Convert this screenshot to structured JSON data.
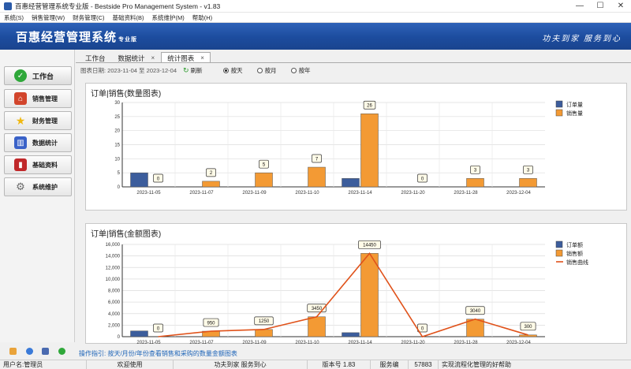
{
  "window": {
    "title": "百惠经营管理系统专业版 - Bestside Pro Management System - v1.83",
    "minimize": "—",
    "maximize": "☐",
    "close": "✕"
  },
  "menu": [
    "系统(S)",
    "销售管理(W)",
    "财务管理(C)",
    "基础资料(B)",
    "系统维护(M)",
    "帮助(H)"
  ],
  "banner": {
    "brand": "百惠经营管理系统",
    "edition": "专业版",
    "slogan": "功夫到家  服务到心"
  },
  "sidebar": {
    "items": [
      {
        "label": "工作台",
        "icon": "check-icon",
        "color": "#2fa83a"
      },
      {
        "label": "销售管理",
        "icon": "house-icon",
        "color": "#d2452c"
      },
      {
        "label": "财务管理",
        "icon": "star-icon",
        "color": "#f0c020"
      },
      {
        "label": "数据统计",
        "icon": "bar-chart-icon",
        "color": "#3a62c8"
      },
      {
        "label": "基础资料",
        "icon": "book-icon",
        "color": "#c0282a"
      },
      {
        "label": "系统维护",
        "icon": "gear-icon",
        "color": "#6a6a6a"
      }
    ]
  },
  "tabs": [
    {
      "label": "工作台"
    },
    {
      "label": "数据统计",
      "close": "×"
    },
    {
      "label": "统计图表",
      "close": "×"
    }
  ],
  "toolbar": {
    "date_range": "图表日期: 2023-11-04 至 2023-12-04",
    "refresh": "刷新",
    "radios": [
      "按天",
      "按月",
      "按年"
    ],
    "selected": "按天"
  },
  "chart_data": [
    {
      "type": "bar",
      "title": "订单|销售(数量图表)",
      "categories": [
        "2023-11-05",
        "2023-11-07",
        "2023-11-09",
        "2023-11-10",
        "2023-11-14",
        "2023-11-20",
        "2023-11-28",
        "2023-12-04"
      ],
      "series": [
        {
          "name": "订单量",
          "values": [
            5,
            0,
            0,
            0,
            3,
            0,
            0,
            0
          ],
          "color": "#3c5d9c"
        },
        {
          "name": "销售量",
          "values": [
            0,
            2,
            5,
            7,
            26,
            0,
            3,
            3
          ],
          "color": "#f39a34"
        }
      ],
      "data_labels": [
        "0",
        "2",
        "5",
        "7",
        "26",
        "0",
        "3",
        "3"
      ],
      "yticks": [
        "0",
        "5",
        "10",
        "15",
        "20",
        "25",
        "30"
      ],
      "ylim": [
        0,
        30
      ],
      "grid": true,
      "legend": "top-right"
    },
    {
      "type": "bar",
      "title": "订单|销售(金额图表)",
      "categories": [
        "2023-11-05",
        "2023-11-07",
        "2023-11-09",
        "2023-11-10",
        "2023-11-14",
        "2023-11-20",
        "2023-11-28",
        "2023-12-04"
      ],
      "series": [
        {
          "name": "订单额",
          "values": [
            1000,
            0,
            0,
            0,
            700,
            0,
            0,
            0
          ],
          "color": "#3c5d9c"
        },
        {
          "name": "销售额",
          "values": [
            0,
            950,
            1250,
            3450,
            14450,
            0,
            3040,
            300
          ],
          "color": "#f39a34"
        },
        {
          "name": "销售曲线",
          "type": "line",
          "values": [
            0,
            950,
            1250,
            3450,
            14450,
            0,
            3040,
            300
          ],
          "color": "#e0521a"
        }
      ],
      "data_labels": [
        "0",
        "950",
        "1250",
        "3450",
        "14450",
        "0",
        "3040",
        "300"
      ],
      "yticks": [
        "0",
        "2,000",
        "4,000",
        "6,000",
        "8,000",
        "10,000",
        "12,000",
        "14,000",
        "16,000"
      ],
      "ylim": [
        0,
        16000
      ],
      "grid": true,
      "legend": "top-right"
    }
  ],
  "hint": "操作指引: 按天/月份/年份查看销售和采购的数量金额图表",
  "status": {
    "user": "用户名:管理员",
    "welcome": "欢迎使用",
    "motto": "功夫到家 服务到心",
    "version": "版本号 1.83",
    "service_label": "服务编",
    "service_no": "57883",
    "tagline": "实现流程化管理的好帮助"
  }
}
